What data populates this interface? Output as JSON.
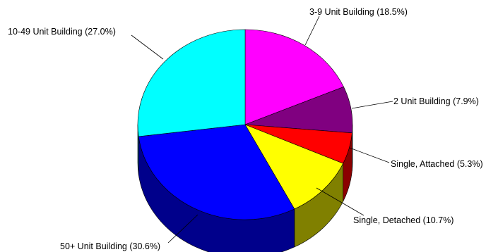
{
  "chart_data": {
    "type": "pie",
    "title": "",
    "three_d": true,
    "start_angle_deg": 0,
    "direction": "clockwise",
    "slices": [
      {
        "label": "3-9 Unit Building (18.5%)",
        "category": "3-9 Unit Building",
        "value": 18.5,
        "color": "#ff00ff",
        "side_color": "#8b008b"
      },
      {
        "label": "2 Unit Building (7.9%)",
        "category": "2 Unit Building",
        "value": 7.9,
        "color": "#800080",
        "side_color": "#4a004a"
      },
      {
        "label": "Single, Attached (5.3%)",
        "category": "Single, Attached",
        "value": 5.3,
        "color": "#ff0000",
        "side_color": "#8b0000"
      },
      {
        "label": "Single, Detached (10.7%)",
        "category": "Single, Detached",
        "value": 10.7,
        "color": "#ffff00",
        "side_color": "#808000"
      },
      {
        "label": "50+ Unit Building (30.6%)",
        "category": "50+ Unit Building",
        "value": 30.6,
        "color": "#0000ff",
        "side_color": "#00008b"
      },
      {
        "label": "10-49 Unit Building (27.0%)",
        "category": "10-49 Unit Building",
        "value": 27.0,
        "color": "#00ffff",
        "side_color": "#008b8b"
      }
    ],
    "legend": "none",
    "labels": "outside with leader lines"
  }
}
